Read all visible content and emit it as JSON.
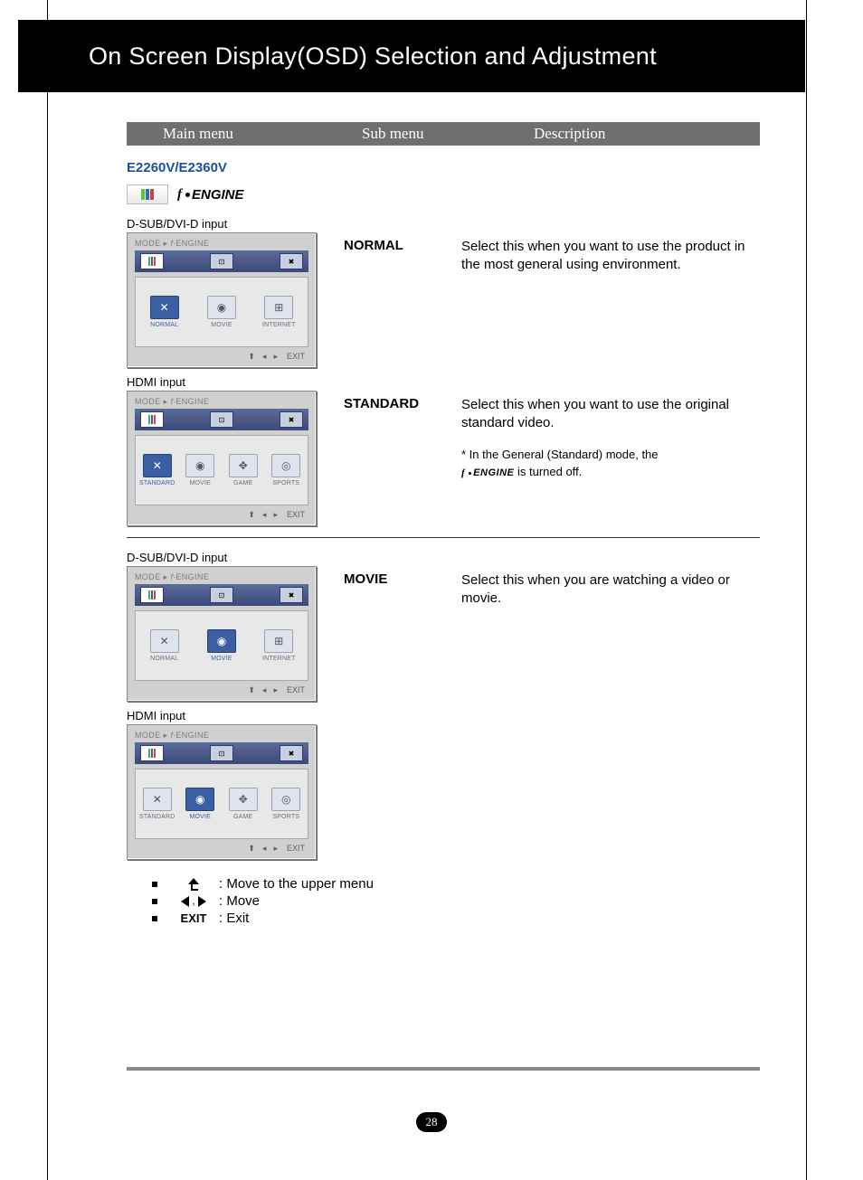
{
  "page": {
    "title": "On Screen Display(OSD) Selection and Adjustment",
    "number": "28"
  },
  "columns": {
    "c1": "Main menu",
    "c2": "Sub menu",
    "c3": "Description"
  },
  "model": "E2260V/E2360V",
  "engine_label": "ENGINE",
  "input_labels": {
    "dsub": "D-SUB/DVI-D input",
    "hdmi": "HDMI input"
  },
  "osd_common": {
    "breadcrumb_a": "MODE",
    "breadcrumb_b": "ENGINE",
    "bottom_exit": "EXIT"
  },
  "panels": {
    "dsub3_items": [
      {
        "label": "NORMAL",
        "glyph": "✕",
        "sel": false
      },
      {
        "label": "MOVIE",
        "glyph": "◉",
        "sel": false
      },
      {
        "label": "INTERNET",
        "glyph": "⊞",
        "sel": false
      }
    ],
    "dsub3_normal_sel": [
      {
        "label": "NORMAL",
        "glyph": "✕",
        "sel": true
      },
      {
        "label": "MOVIE",
        "glyph": "◉",
        "sel": false
      },
      {
        "label": "INTERNET",
        "glyph": "⊞",
        "sel": false
      }
    ],
    "dsub3_movie_sel": [
      {
        "label": "NORMAL",
        "glyph": "✕",
        "sel": false
      },
      {
        "label": "MOVIE",
        "glyph": "◉",
        "sel": true
      },
      {
        "label": "INTERNET",
        "glyph": "⊞",
        "sel": false
      }
    ],
    "hdmi4_standard_sel": [
      {
        "label": "STANDARD",
        "glyph": "✕",
        "sel": true
      },
      {
        "label": "MOVIE",
        "glyph": "◉",
        "sel": false
      },
      {
        "label": "GAME",
        "glyph": "✥",
        "sel": false
      },
      {
        "label": "SPORTS",
        "glyph": "◎",
        "sel": false
      }
    ],
    "hdmi4_movie_sel": [
      {
        "label": "STANDARD",
        "glyph": "✕",
        "sel": false
      },
      {
        "label": "MOVIE",
        "glyph": "◉",
        "sel": true
      },
      {
        "label": "GAME",
        "glyph": "✥",
        "sel": false
      },
      {
        "label": "SPORTS",
        "glyph": "◎",
        "sel": false
      }
    ]
  },
  "modes": {
    "normal": {
      "name": "NORMAL",
      "desc": "Select this when you want to use the product in the most general using environment."
    },
    "standard": {
      "name": "STANDARD",
      "desc": "Select this when you want to use the original standard video.",
      "note_a": "* In the General (Standard) mode, the",
      "note_b": " is turned off."
    },
    "movie": {
      "name": "MOVIE",
      "desc": "Select this when you are watching a video or movie."
    }
  },
  "legend": {
    "up": ": Move to the upper menu",
    "move": ": Move",
    "exit_label": "EXIT",
    "exit": ": Exit",
    "comma": ","
  },
  "colors": {
    "header_bg": "#6f6f6f",
    "model": "#1b4fa0",
    "osd_tabbar": "#3b4a78",
    "osd_sel": "#3b5fa5",
    "rule": "#888888",
    "page_badge": "#000000"
  }
}
